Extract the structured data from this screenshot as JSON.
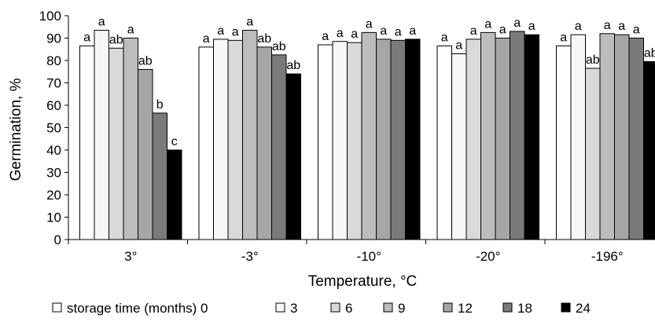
{
  "chart_data": {
    "type": "bar",
    "title": "",
    "xlabel": "Temperature, °C",
    "ylabel": "Germination, %",
    "ylim": [
      0,
      100
    ],
    "yticks": [
      0,
      10,
      20,
      30,
      40,
      50,
      60,
      70,
      80,
      90,
      100
    ],
    "grid": false,
    "legend_position": "bottom",
    "legend_title": "storage time (months)",
    "categories": [
      "3°",
      "-3°",
      "-10°",
      "-20°",
      "-196°"
    ],
    "series": [
      {
        "name": "0",
        "color": "#ffffff",
        "values": [
          86.5,
          86,
          87,
          86.5,
          86.5
        ],
        "letters": [
          "a",
          "a",
          "a",
          "a",
          "a"
        ]
      },
      {
        "name": "3",
        "color": "#f7f7f7",
        "values": [
          93.5,
          89.5,
          88.5,
          83,
          91.5
        ],
        "letters": [
          "a",
          "a",
          "a",
          "a",
          "a"
        ]
      },
      {
        "name": "6",
        "color": "#d9d9d9",
        "values": [
          85.5,
          89,
          88,
          89.5,
          76.5
        ],
        "letters": [
          "ab",
          "a",
          "a",
          "a",
          "ab"
        ]
      },
      {
        "name": "9",
        "color": "#bdbdbd",
        "values": [
          90,
          93.5,
          92.5,
          92.5,
          92
        ],
        "letters": [
          "a",
          "a",
          "a",
          "a",
          "a"
        ]
      },
      {
        "name": "12",
        "color": "#a6a6a6",
        "values": [
          76,
          86,
          89.5,
          90,
          91.5
        ],
        "letters": [
          "ab",
          "ab",
          "a",
          "a",
          "a"
        ]
      },
      {
        "name": "18",
        "color": "#7a7a7a",
        "values": [
          56.5,
          82.5,
          89,
          93,
          90
        ],
        "letters": [
          "b",
          "ab",
          "a",
          "a",
          "a"
        ]
      },
      {
        "name": "24",
        "color": "#000000",
        "values": [
          40,
          74,
          89.5,
          91.5,
          79.5
        ],
        "letters": [
          "c",
          "ab",
          "a",
          "a",
          "ab"
        ]
      }
    ]
  }
}
